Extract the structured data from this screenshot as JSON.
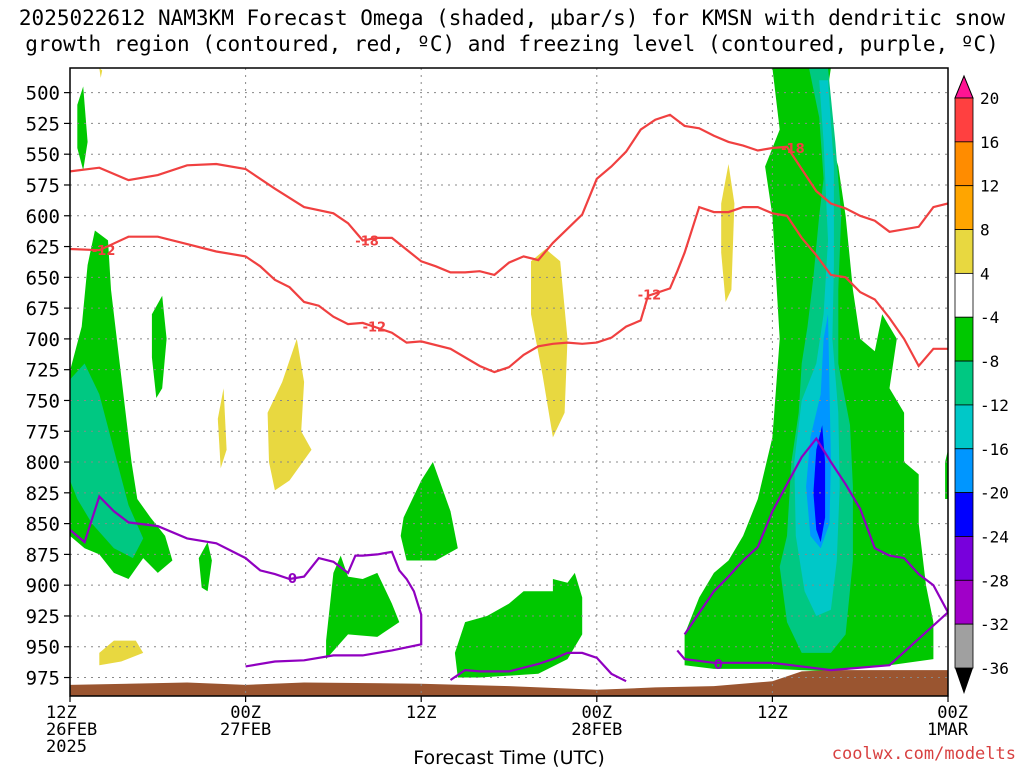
{
  "chart_data": {
    "type": "heatmap",
    "title_line1": "2025022612 NAM3KM Forecast Omega (shaded, µbar/s) for KMSN with dendritic snow",
    "title_line2": "growth region (contoured, red, ºC) and freezing level (contoured, purple, ºC)",
    "xlabel": "Forecast Time (UTC)",
    "x_ticks": [
      {
        "hour": 0,
        "lines": [
          "12Z",
          "26FEB",
          "2025"
        ]
      },
      {
        "hour": 12,
        "lines": [
          "00Z",
          "27FEB"
        ]
      },
      {
        "hour": 24,
        "lines": [
          "12Z"
        ]
      },
      {
        "hour": 36,
        "lines": [
          "00Z",
          "28FEB"
        ]
      },
      {
        "hour": 48,
        "lines": [
          "12Z"
        ]
      },
      {
        "hour": 60,
        "lines": [
          "00Z",
          "1MAR"
        ]
      }
    ],
    "xlim": [
      0,
      60
    ],
    "ylabel": "",
    "y_ticks": [
      500,
      525,
      550,
      575,
      600,
      625,
      650,
      675,
      700,
      725,
      750,
      775,
      800,
      825,
      850,
      875,
      900,
      925,
      950,
      975
    ],
    "ylim": [
      480,
      990
    ],
    "grid": true,
    "colorbar": {
      "labels": [
        20,
        16,
        12,
        8,
        4,
        -4,
        -8,
        -12,
        -16,
        -20,
        -24,
        -28,
        -32,
        -36
      ],
      "colors": [
        "#ff1493",
        "#ff4040",
        "#ff8c00",
        "#ffa500",
        "#e8d840",
        "#ffffff",
        "#00c800",
        "#00c882",
        "#00c8c8",
        "#0096ff",
        "#0000ff",
        "#7800dc",
        "#a000c8",
        "#a0a0a0",
        "#000000"
      ]
    },
    "contours": {
      "dgz_upper_minus18": {
        "label": "-18",
        "color": "#f04040",
        "points": [
          [
            0,
            564
          ],
          [
            2,
            561
          ],
          [
            4,
            571
          ],
          [
            6,
            567
          ],
          [
            8,
            559
          ],
          [
            10,
            558
          ],
          [
            12,
            562
          ],
          [
            14,
            578
          ],
          [
            16,
            593
          ],
          [
            18,
            598
          ],
          [
            19,
            606
          ],
          [
            20,
            620
          ],
          [
            21,
            618
          ],
          [
            22,
            618
          ],
          [
            24,
            637
          ],
          [
            25,
            641
          ],
          [
            26,
            646
          ],
          [
            27,
            646
          ],
          [
            28,
            645
          ],
          [
            29,
            648
          ],
          [
            30,
            638
          ],
          [
            31,
            633
          ],
          [
            32,
            636
          ],
          [
            33,
            622
          ],
          [
            35,
            599
          ],
          [
            36,
            570
          ],
          [
            37,
            560
          ],
          [
            38,
            548
          ],
          [
            39,
            530
          ],
          [
            40,
            522
          ],
          [
            41,
            518
          ],
          [
            42,
            527
          ],
          [
            43,
            529
          ],
          [
            44,
            535
          ],
          [
            45,
            540
          ],
          [
            46,
            543
          ],
          [
            47,
            547
          ],
          [
            48,
            545
          ],
          [
            49,
            544
          ],
          [
            50,
            562
          ],
          [
            51,
            580
          ],
          [
            52,
            590
          ],
          [
            53,
            594
          ],
          [
            54,
            600
          ],
          [
            55,
            604
          ],
          [
            56,
            613
          ],
          [
            57,
            611
          ],
          [
            58,
            609
          ],
          [
            59,
            593
          ],
          [
            60,
            590
          ]
        ]
      },
      "dgz_lower_minus12_left": {
        "label": "-12",
        "color": "#f04040",
        "points": [
          [
            0,
            627
          ],
          [
            2,
            628
          ],
          [
            4,
            617
          ],
          [
            6,
            617
          ],
          [
            8,
            623
          ],
          [
            10,
            629
          ],
          [
            12,
            633
          ],
          [
            13,
            641
          ],
          [
            14,
            652
          ],
          [
            15,
            658
          ],
          [
            16,
            670
          ],
          [
            17,
            673
          ],
          [
            18,
            682
          ],
          [
            19,
            688
          ],
          [
            20,
            687
          ],
          [
            22,
            695
          ],
          [
            23,
            703
          ],
          [
            24,
            702
          ],
          [
            26,
            708
          ],
          [
            28,
            722
          ],
          [
            29,
            727
          ],
          [
            30,
            723
          ],
          [
            31,
            713
          ],
          [
            32,
            706
          ],
          [
            33,
            704
          ],
          [
            34,
            703
          ],
          [
            35,
            704
          ],
          [
            36,
            703
          ],
          [
            37,
            699
          ],
          [
            38,
            690
          ],
          [
            39,
            685
          ],
          [
            39.5,
            665
          ],
          [
            41,
            659
          ],
          [
            41.5,
            645
          ],
          [
            42,
            630
          ],
          [
            43,
            593
          ],
          [
            44,
            597
          ],
          [
            45,
            597
          ],
          [
            46,
            593
          ],
          [
            47,
            593
          ],
          [
            48,
            598
          ],
          [
            49,
            600
          ],
          [
            50,
            618
          ],
          [
            51,
            632
          ],
          [
            52,
            648
          ],
          [
            53,
            650
          ],
          [
            54,
            662
          ],
          [
            55,
            668
          ],
          [
            56,
            683
          ],
          [
            57,
            700
          ],
          [
            58,
            722
          ],
          [
            59,
            708
          ],
          [
            60,
            708
          ]
        ]
      },
      "freezing_level_0C_a": {
        "label": "0",
        "color": "#9000c0",
        "points": [
          [
            0,
            855
          ],
          [
            1,
            865
          ],
          [
            2,
            828
          ],
          [
            3,
            840
          ],
          [
            4,
            849
          ],
          [
            6,
            852
          ],
          [
            8,
            862
          ],
          [
            10,
            866
          ],
          [
            12,
            878
          ],
          [
            13,
            888
          ],
          [
            14,
            891
          ],
          [
            15,
            895
          ],
          [
            16,
            893
          ],
          [
            17,
            878
          ],
          [
            18,
            881
          ],
          [
            19,
            890
          ],
          [
            19.5,
            876
          ],
          [
            20,
            876
          ],
          [
            21,
            875
          ],
          [
            22,
            873
          ],
          [
            22.5,
            888
          ],
          [
            23,
            895
          ],
          [
            23.5,
            905
          ],
          [
            24,
            924
          ],
          [
            24,
            948
          ],
          [
            22,
            953
          ],
          [
            20,
            957
          ],
          [
            18,
            957
          ],
          [
            16,
            961
          ],
          [
            14,
            962
          ],
          [
            12,
            966
          ]
        ]
      },
      "freezing_level_0C_b": {
        "label": "0",
        "color": "#9000c0",
        "points": [
          [
            26,
            977
          ],
          [
            27,
            969
          ],
          [
            28,
            970
          ],
          [
            30,
            970
          ],
          [
            32,
            964
          ],
          [
            33,
            960
          ],
          [
            34,
            955
          ],
          [
            35,
            955
          ],
          [
            36,
            959
          ],
          [
            37,
            972
          ],
          [
            38,
            978
          ]
        ]
      },
      "freezing_level_0C_c": {
        "label": "0",
        "color": "#9000c0",
        "points": [
          [
            42,
            940
          ],
          [
            44,
            905
          ],
          [
            45,
            893
          ],
          [
            46,
            880
          ],
          [
            47,
            869
          ],
          [
            48,
            840
          ],
          [
            49,
            818
          ],
          [
            50,
            796
          ],
          [
            51,
            781
          ],
          [
            52,
            800
          ],
          [
            53,
            818
          ],
          [
            54,
            838
          ],
          [
            55,
            870
          ],
          [
            56,
            876
          ],
          [
            57,
            878
          ],
          [
            58,
            891
          ],
          [
            59,
            900
          ],
          [
            60,
            922
          ],
          [
            56,
            965
          ],
          [
            52,
            969
          ],
          [
            48,
            963
          ],
          [
            44,
            963
          ],
          [
            42,
            960
          ],
          [
            41.5,
            953
          ]
        ]
      }
    },
    "shaded_regions": [
      {
        "level": -8,
        "color": "#00c800",
        "region": "left_band"
      },
      {
        "level": -12,
        "color": "#00c882",
        "region": "left_core"
      },
      {
        "level": 4,
        "color": "#e8d840",
        "region": "positive_patches"
      },
      {
        "level": -8,
        "color": "#00c800",
        "region": "right_band"
      },
      {
        "level": -16,
        "color": "#00c8c8",
        "region": "right_core"
      },
      {
        "level": -24,
        "color": "#0000ff",
        "region": "right_max"
      }
    ],
    "terrain_color": "#9a5530"
  },
  "attribution": "coolwx.com/modelts"
}
